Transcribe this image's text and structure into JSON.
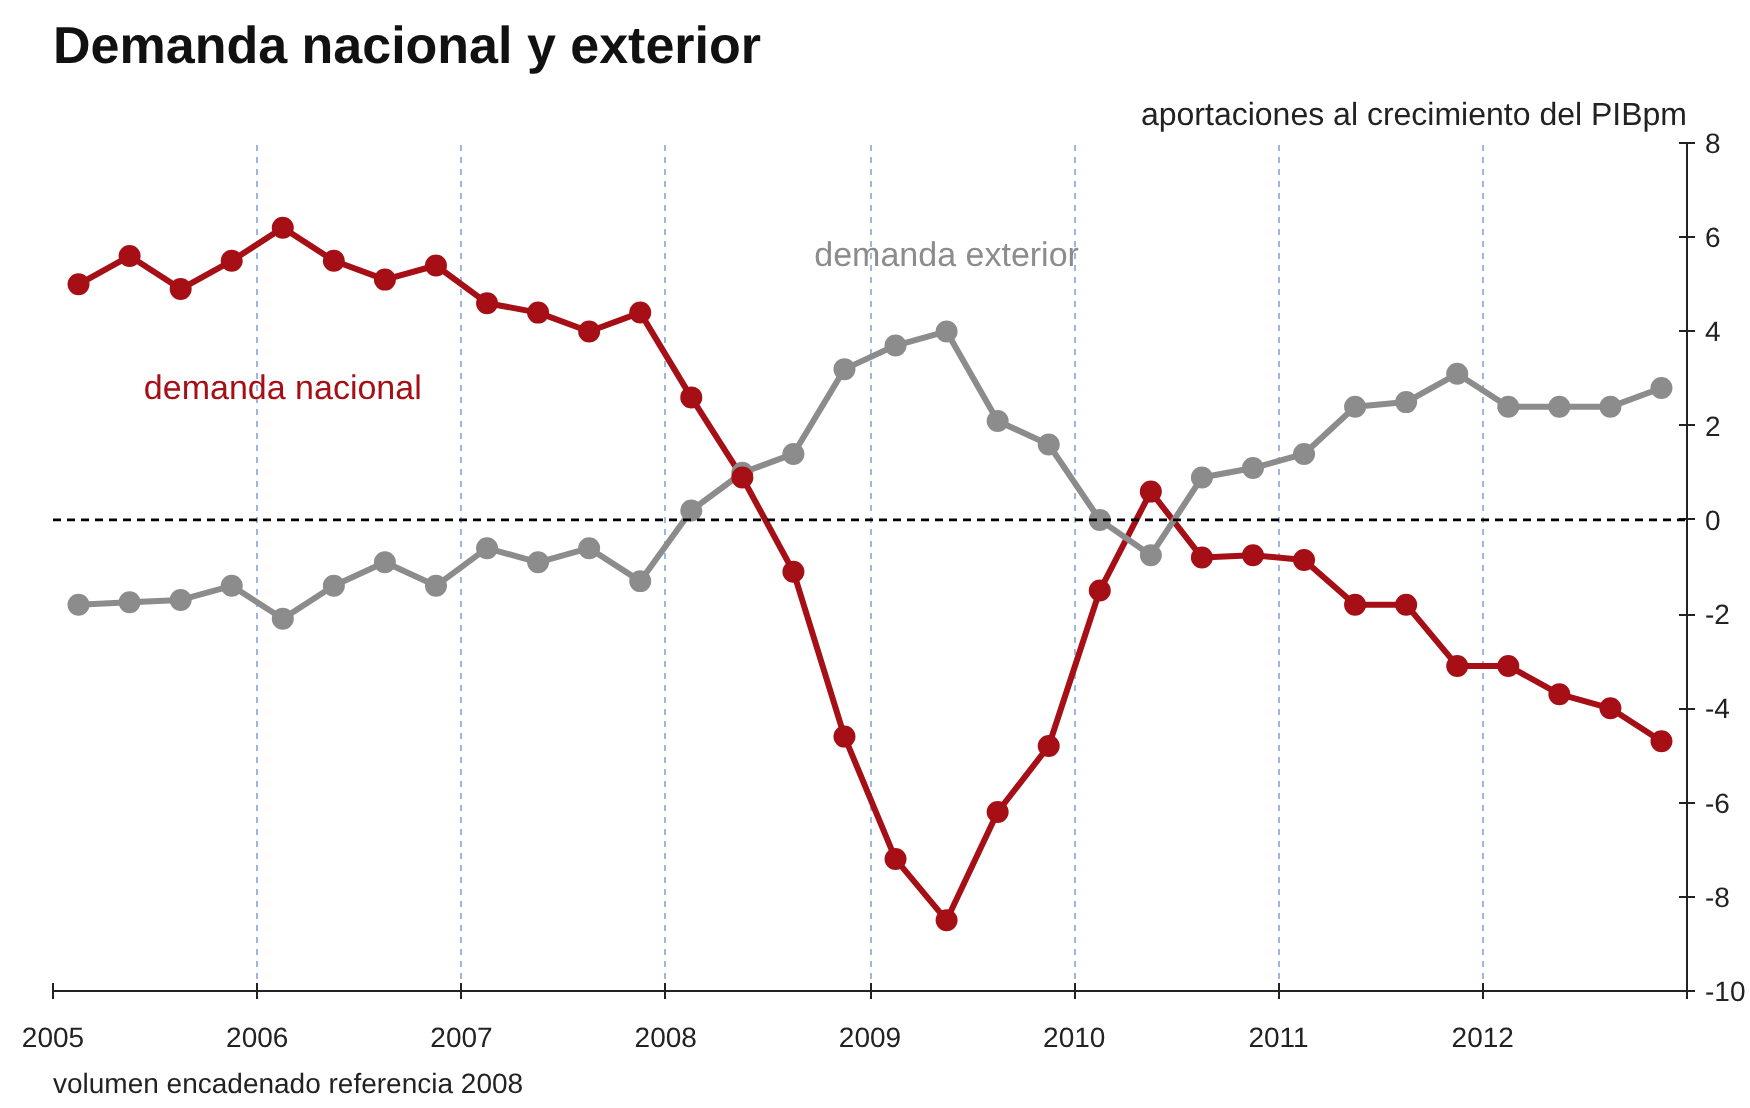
{
  "chart_data": {
    "type": "line",
    "title": "Demanda nacional y exterior",
    "subtitle": "aportaciones al crecimiento del PIBpm",
    "annotations": [
      "volumen encadenado referencia 2008"
    ],
    "x": [
      2005.125,
      2005.375,
      2005.625,
      2005.875,
      2006.125,
      2006.375,
      2006.625,
      2006.875,
      2007.125,
      2007.375,
      2007.625,
      2007.875,
      2008.125,
      2008.375,
      2008.625,
      2008.875,
      2009.125,
      2009.375,
      2009.625,
      2009.875,
      2010.125,
      2010.375,
      2010.625,
      2010.875,
      2011.125,
      2011.375,
      2011.625,
      2011.875,
      2012.125,
      2012.375,
      2012.625,
      2012.875
    ],
    "series": [
      {
        "name": "demanda nacional",
        "color": "#a50f15",
        "values": [
          5.0,
          5.6,
          4.9,
          5.5,
          6.2,
          5.5,
          5.1,
          5.4,
          4.6,
          4.4,
          4.0,
          4.4,
          2.6,
          0.9,
          -1.1,
          -4.6,
          -7.2,
          -8.5,
          -6.2,
          -4.8,
          -1.5,
          0.6,
          -0.8,
          -0.75,
          -0.85,
          -1.8,
          -1.8,
          -3.1,
          -3.1,
          -3.7,
          -4.0,
          -4.7
        ]
      },
      {
        "name": "demanda exterior",
        "color": "#8c8c8c",
        "values": [
          -1.8,
          -1.75,
          -1.7,
          -1.4,
          -2.1,
          -1.4,
          -0.9,
          -1.4,
          -0.6,
          -0.9,
          -0.6,
          -1.3,
          0.2,
          1.0,
          1.4,
          3.2,
          3.7,
          4.0,
          2.1,
          1.6,
          0.0,
          -0.75,
          0.9,
          1.1,
          1.4,
          2.4,
          2.5,
          3.1,
          2.4,
          2.4,
          2.4,
          2.8
        ]
      }
    ],
    "xlim": [
      2005,
      2013
    ],
    "xticks": [
      2005,
      2006,
      2007,
      2008,
      2009,
      2010,
      2011,
      2012,
      {
        "value": 2013,
        "label": null
      }
    ],
    "ylim": [
      -10,
      8
    ],
    "yticks": [
      -10,
      -8,
      -6,
      -4,
      -2,
      0,
      2,
      4,
      6,
      8
    ],
    "ref_lines": [
      {
        "axis": "y",
        "value": 0,
        "color": "#000000",
        "line_style": "dashed"
      }
    ],
    "grid": "x",
    "marker": "circle",
    "line_style": "solid"
  }
}
